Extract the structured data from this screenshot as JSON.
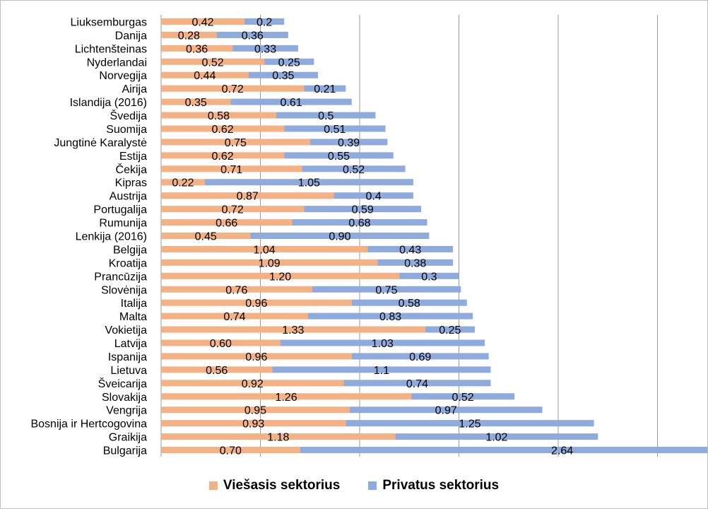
{
  "chart_data": {
    "type": "bar",
    "orientation": "horizontal",
    "stacked": true,
    "categories": [
      "Liuksemburgas",
      "Danija",
      "Lichtenšteinas",
      "Nyderlandai",
      "Norvegija",
      "Airija",
      "Islandija (2016)",
      "Švedija",
      "Suomija",
      "Jungtinė Karalystė",
      "Estija",
      "Čekija",
      "Kipras",
      "Austrija",
      "Portugalija",
      "Rumunija",
      "Lenkija (2016)",
      "Belgija",
      "Kroatija",
      "Prancūzija",
      "Slovėnija",
      "Italija",
      "Malta",
      "Vokietija",
      "Latvija",
      "Ispanija",
      "Lietuva",
      "Šveicarija",
      "Slovakija",
      "Vengrija",
      "Bosnija ir Hertcogovina",
      "Graikija",
      "Bulgarija"
    ],
    "series": [
      {
        "name": "Viešasis sektorius",
        "color": "#f4b183",
        "values": [
          0.42,
          0.28,
          0.36,
          0.52,
          0.44,
          0.72,
          0.35,
          0.58,
          0.62,
          0.75,
          0.62,
          0.71,
          0.22,
          0.87,
          0.72,
          0.66,
          0.45,
          1.04,
          1.09,
          1.2,
          0.76,
          0.96,
          0.74,
          1.33,
          0.6,
          0.96,
          0.56,
          0.92,
          1.26,
          0.95,
          0.93,
          1.18,
          0.7
        ],
        "labels": [
          "0.42",
          "0.28",
          "0.36",
          "0.52",
          "0.44",
          "0.72",
          "0.35",
          "0.58",
          "0.62",
          "0.75",
          "0.62",
          "0.71",
          "0.22",
          "0.87",
          "0.72",
          "0.66",
          "0.45",
          "1.04",
          "1.09",
          "1.20",
          "0.76",
          "0.96",
          "0.74",
          "1.33",
          "0.60",
          "0.96",
          "0.56",
          "0.92",
          "1.26",
          "0.95",
          "0.93",
          "1.18",
          "0.70"
        ]
      },
      {
        "name": "Privatus sektorius",
        "color": "#8faadc",
        "values": [
          0.2,
          0.36,
          0.33,
          0.25,
          0.35,
          0.21,
          0.61,
          0.5,
          0.51,
          0.39,
          0.55,
          0.52,
          1.05,
          0.4,
          0.59,
          0.68,
          0.9,
          0.43,
          0.38,
          0.3,
          0.75,
          0.58,
          0.83,
          0.25,
          1.03,
          0.69,
          1.1,
          0.74,
          0.52,
          0.97,
          1.25,
          1.02,
          2.64
        ],
        "labels": [
          "0.2",
          "0.36",
          "0.33",
          "0.25",
          "0.35",
          "0.21",
          "0.61",
          "0.5",
          "0.51",
          "0.39",
          "0.55",
          "0.52",
          "1.05",
          "0.4",
          "0.59",
          "0.68",
          "0.90",
          "0.43",
          "0.38",
          "0.3",
          "0.75",
          "0.58",
          "0.83",
          "0.25",
          "1.03",
          "0.69",
          "1.1",
          "0.74",
          "0.52",
          "0.97",
          "1.25",
          "1.02",
          "2.64"
        ]
      }
    ],
    "xlim": [
      0,
      3.5
    ],
    "grid": true,
    "legend_position": "bottom",
    "title": "",
    "xlabel": "",
    "ylabel": ""
  }
}
